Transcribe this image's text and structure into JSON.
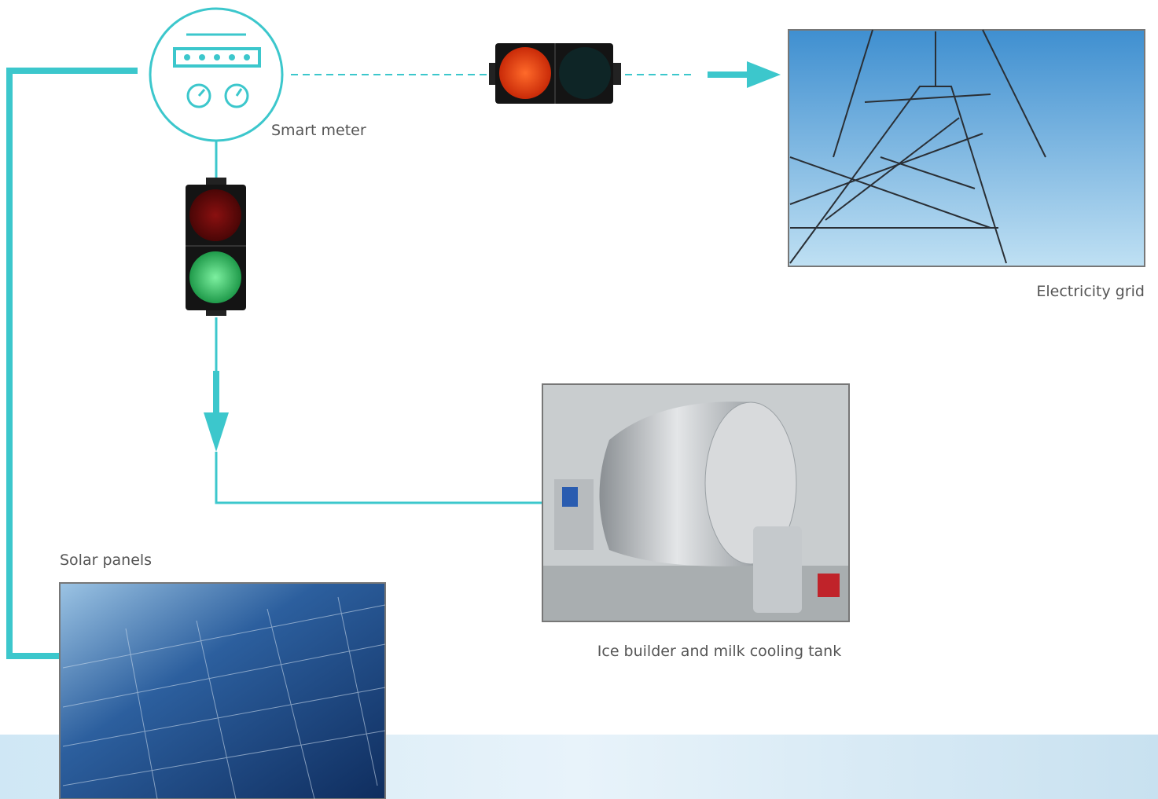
{
  "labels": {
    "smart_meter": "Smart meter",
    "electricity_grid": "Electricity grid",
    "tank": "Ice builder and milk cooling tank",
    "solar_panels": "Solar panels"
  }
}
